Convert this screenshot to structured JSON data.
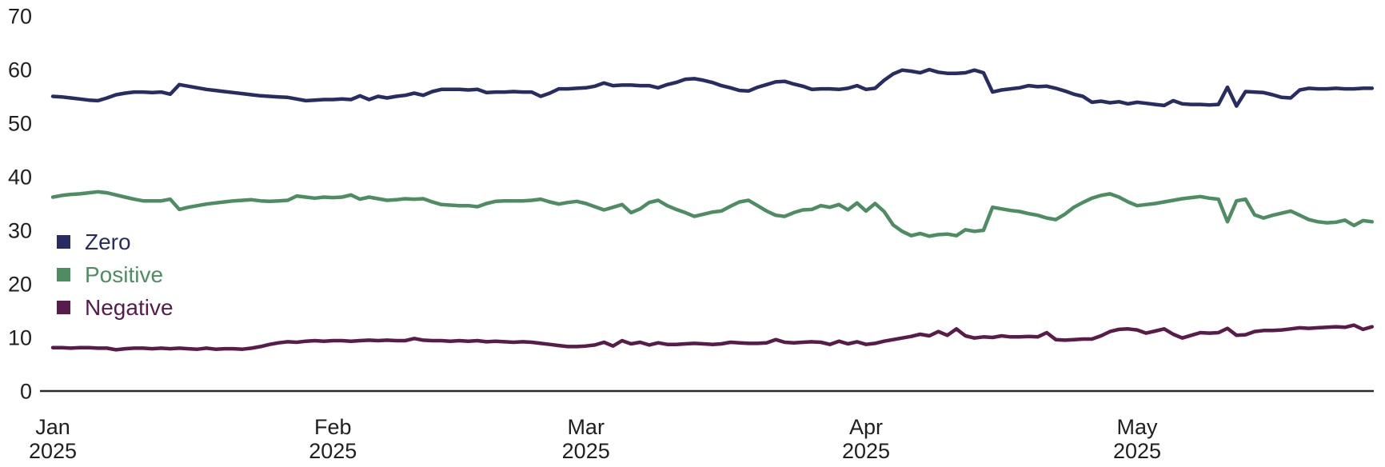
{
  "chart_data": {
    "type": "line",
    "title": "",
    "x_axis": {
      "start_date": "2025-01-01",
      "interval": "daily",
      "num_points": 147,
      "tick_months": [
        {
          "label": "Jan",
          "year": "2025",
          "day_index": 0
        },
        {
          "label": "Feb",
          "year": "2025",
          "day_index": 31
        },
        {
          "label": "Mar",
          "year": "2025",
          "day_index": 59
        },
        {
          "label": "Apr",
          "year": "2025",
          "day_index": 90
        },
        {
          "label": "May",
          "year": "2025",
          "day_index": 120
        }
      ]
    },
    "y_axis": {
      "ticks": [
        0,
        10,
        20,
        30,
        40,
        50,
        60,
        70
      ],
      "range": [
        0,
        70
      ],
      "grid": false
    },
    "legend_position": "left-middle",
    "series": [
      {
        "name": "Zero",
        "color": "#272c63",
        "values": [
          55.0,
          54.9,
          54.7,
          54.5,
          54.3,
          54.2,
          54.7,
          55.3,
          55.6,
          55.8,
          55.8,
          55.7,
          55.8,
          55.4,
          57.2,
          56.9,
          56.6,
          56.3,
          56.1,
          55.9,
          55.7,
          55.5,
          55.3,
          55.1,
          55.0,
          54.9,
          54.8,
          54.5,
          54.2,
          54.3,
          54.4,
          54.4,
          54.5,
          54.4,
          55.1,
          54.4,
          55.0,
          54.7,
          55.0,
          55.2,
          55.6,
          55.2,
          55.9,
          56.3,
          56.3,
          56.3,
          56.2,
          56.3,
          55.7,
          55.8,
          55.8,
          55.9,
          55.8,
          55.8,
          55.0,
          55.6,
          56.4,
          56.4,
          56.5,
          56.6,
          56.9,
          57.5,
          57.0,
          57.1,
          57.1,
          57.0,
          57.0,
          56.6,
          57.2,
          57.6,
          58.2,
          58.3,
          58.0,
          57.6,
          57.0,
          56.6,
          56.1,
          56.0,
          56.7,
          57.2,
          57.7,
          57.8,
          57.3,
          56.9,
          56.3,
          56.4,
          56.4,
          56.3,
          56.5,
          57.0,
          56.3,
          56.5,
          58.0,
          59.2,
          59.9,
          59.7,
          59.4,
          60.0,
          59.5,
          59.3,
          59.3,
          59.4,
          59.9,
          59.4,
          55.8,
          56.2,
          56.4,
          56.6,
          57.0,
          56.8,
          56.9,
          56.5,
          56.0,
          55.4,
          55.0,
          53.9,
          54.1,
          53.8,
          54.0,
          53.6,
          53.9,
          53.7,
          53.5,
          53.3,
          54.2,
          53.6,
          53.5,
          53.5,
          53.4,
          53.5,
          56.7,
          53.2,
          55.9,
          55.8,
          55.7,
          55.3,
          54.8,
          54.7,
          56.2,
          56.5,
          56.4,
          56.4,
          56.5,
          56.4,
          56.4,
          56.5,
          56.5
        ]
      },
      {
        "name": "Positive",
        "color": "#4e8d61",
        "values": [
          36.2,
          36.5,
          36.7,
          36.8,
          37.0,
          37.2,
          37.0,
          36.6,
          36.2,
          35.8,
          35.5,
          35.5,
          35.5,
          35.8,
          33.9,
          34.3,
          34.6,
          34.9,
          35.1,
          35.3,
          35.5,
          35.6,
          35.7,
          35.5,
          35.4,
          35.5,
          35.6,
          36.4,
          36.2,
          36.0,
          36.2,
          36.1,
          36.2,
          36.6,
          35.8,
          36.2,
          35.9,
          35.6,
          35.7,
          35.9,
          35.8,
          35.9,
          35.3,
          34.8,
          34.7,
          34.6,
          34.6,
          34.4,
          35.0,
          35.4,
          35.5,
          35.5,
          35.5,
          35.6,
          35.8,
          35.3,
          34.9,
          35.2,
          35.4,
          35.0,
          34.4,
          33.8,
          34.3,
          34.8,
          33.3,
          34.0,
          35.2,
          35.6,
          34.6,
          33.9,
          33.3,
          32.6,
          33.0,
          33.4,
          33.6,
          34.5,
          35.3,
          35.6,
          34.6,
          33.6,
          32.8,
          32.6,
          33.3,
          33.8,
          33.9,
          34.6,
          34.3,
          34.8,
          33.8,
          35.1,
          33.6,
          35.0,
          33.5,
          31.0,
          29.8,
          29.0,
          29.4,
          28.9,
          29.2,
          29.3,
          29.0,
          30.1,
          29.8,
          30.0,
          34.3,
          34.0,
          33.7,
          33.5,
          33.1,
          32.8,
          32.3,
          32.0,
          33.0,
          34.3,
          35.2,
          36.0,
          36.5,
          36.8,
          36.2,
          35.3,
          34.6,
          34.8,
          35.0,
          35.3,
          35.6,
          35.9,
          36.1,
          36.3,
          36.0,
          35.8,
          31.6,
          35.5,
          35.8,
          32.9,
          32.3,
          32.8,
          33.2,
          33.6,
          32.8,
          32.0,
          31.6,
          31.4,
          31.5,
          31.9,
          30.9,
          31.8,
          31.6
        ]
      },
      {
        "name": "Negative",
        "color": "#581b4a",
        "values": [
          8.1,
          8.1,
          8.0,
          8.1,
          8.1,
          8.0,
          8.0,
          7.7,
          7.9,
          8.0,
          8.0,
          7.9,
          8.0,
          7.9,
          8.0,
          7.9,
          7.8,
          8.0,
          7.8,
          7.9,
          7.9,
          7.8,
          8.0,
          8.3,
          8.7,
          9.0,
          9.2,
          9.1,
          9.3,
          9.4,
          9.3,
          9.4,
          9.4,
          9.3,
          9.4,
          9.5,
          9.4,
          9.5,
          9.4,
          9.4,
          9.8,
          9.5,
          9.4,
          9.4,
          9.3,
          9.4,
          9.3,
          9.4,
          9.2,
          9.3,
          9.2,
          9.1,
          9.2,
          9.1,
          8.9,
          8.7,
          8.5,
          8.3,
          8.3,
          8.4,
          8.6,
          9.1,
          8.4,
          9.4,
          8.8,
          9.1,
          8.6,
          9.0,
          8.7,
          8.7,
          8.8,
          8.9,
          8.8,
          8.7,
          8.8,
          9.1,
          9.0,
          8.9,
          8.9,
          9.0,
          9.6,
          9.1,
          9.0,
          9.1,
          9.2,
          9.1,
          8.7,
          9.3,
          8.8,
          9.2,
          8.7,
          8.9,
          9.3,
          9.6,
          9.9,
          10.2,
          10.6,
          10.3,
          11.1,
          10.4,
          11.6,
          10.3,
          9.9,
          10.1,
          10.0,
          10.3,
          10.1,
          10.1,
          10.2,
          10.1,
          10.9,
          9.6,
          9.5,
          9.6,
          9.7,
          9.7,
          10.3,
          11.1,
          11.5,
          11.6,
          11.4,
          10.8,
          11.2,
          11.6,
          10.6,
          9.9,
          10.4,
          10.9,
          10.8,
          10.9,
          11.7,
          10.4,
          10.5,
          11.1,
          11.3,
          11.3,
          11.4,
          11.6,
          11.8,
          11.7,
          11.8,
          11.9,
          12.0,
          11.9,
          12.3,
          11.5,
          12.0
        ]
      }
    ]
  },
  "colors": {
    "background": "#ffffff",
    "axis_line": "#2b2b2b",
    "tick_text": "#1f1f1f"
  }
}
